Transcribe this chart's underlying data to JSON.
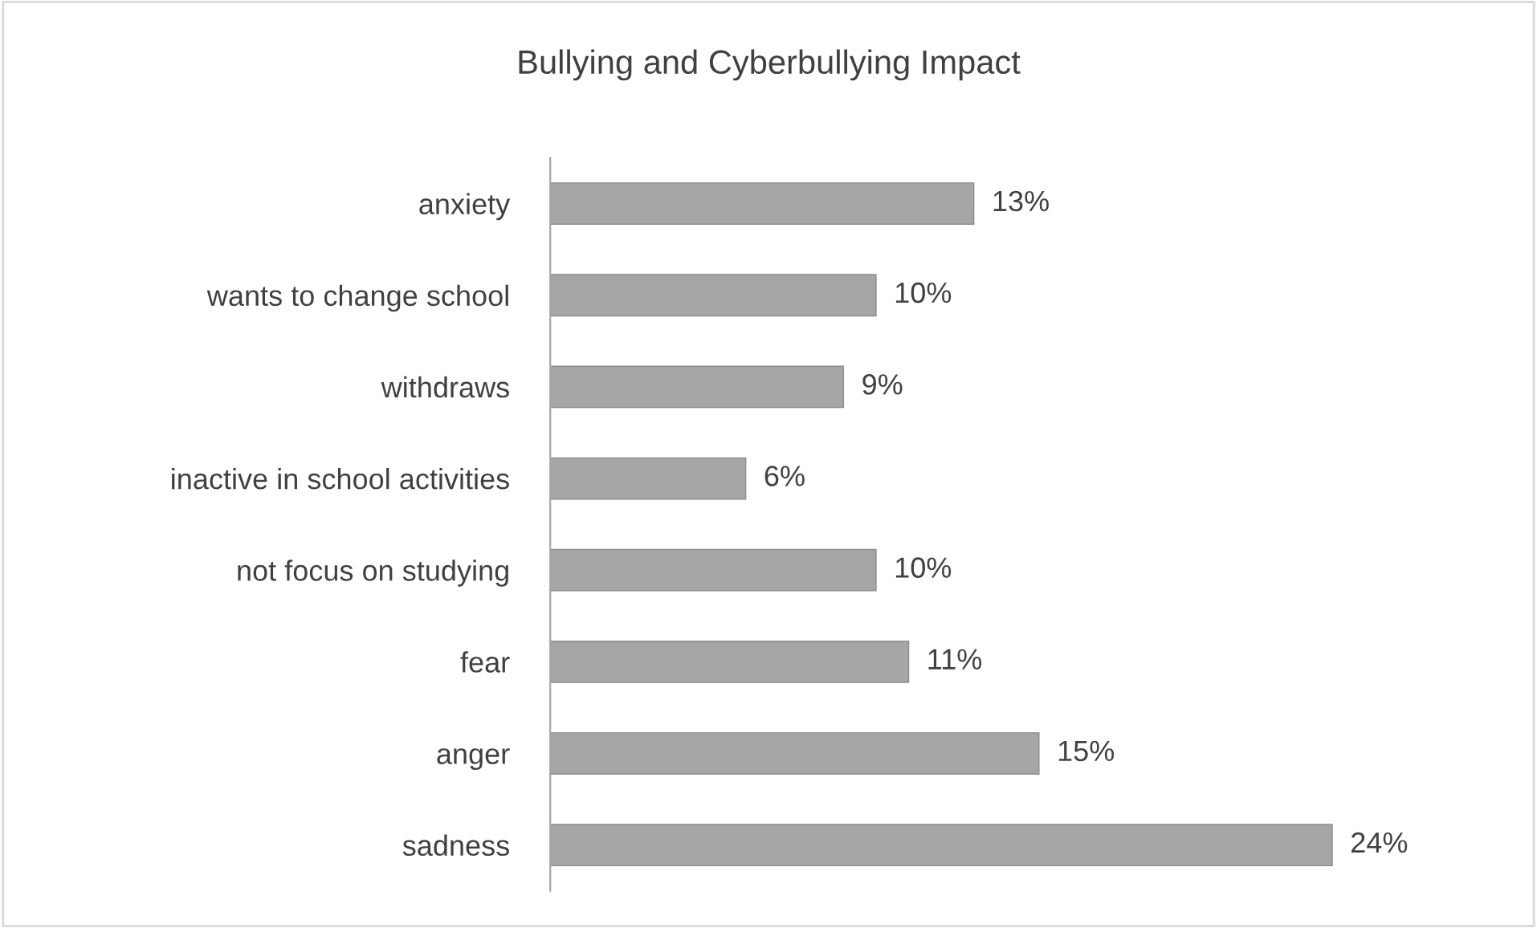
{
  "chart_data": {
    "type": "bar",
    "orientation": "horizontal",
    "title": "Bullying and Cyberbullying Impact",
    "categories": [
      "anxiety",
      "wants to change school",
      "withdraws",
      "inactive in school activities",
      "not focus on studying",
      "fear",
      "anger",
      "sadness"
    ],
    "values": [
      13,
      10,
      9,
      6,
      10,
      11,
      15,
      24
    ],
    "value_labels": [
      "13%",
      "10%",
      "9%",
      "6%",
      "10%",
      "11%",
      "15%",
      "24%"
    ],
    "color": "#a6a6a6",
    "grid": false,
    "legend": false
  }
}
